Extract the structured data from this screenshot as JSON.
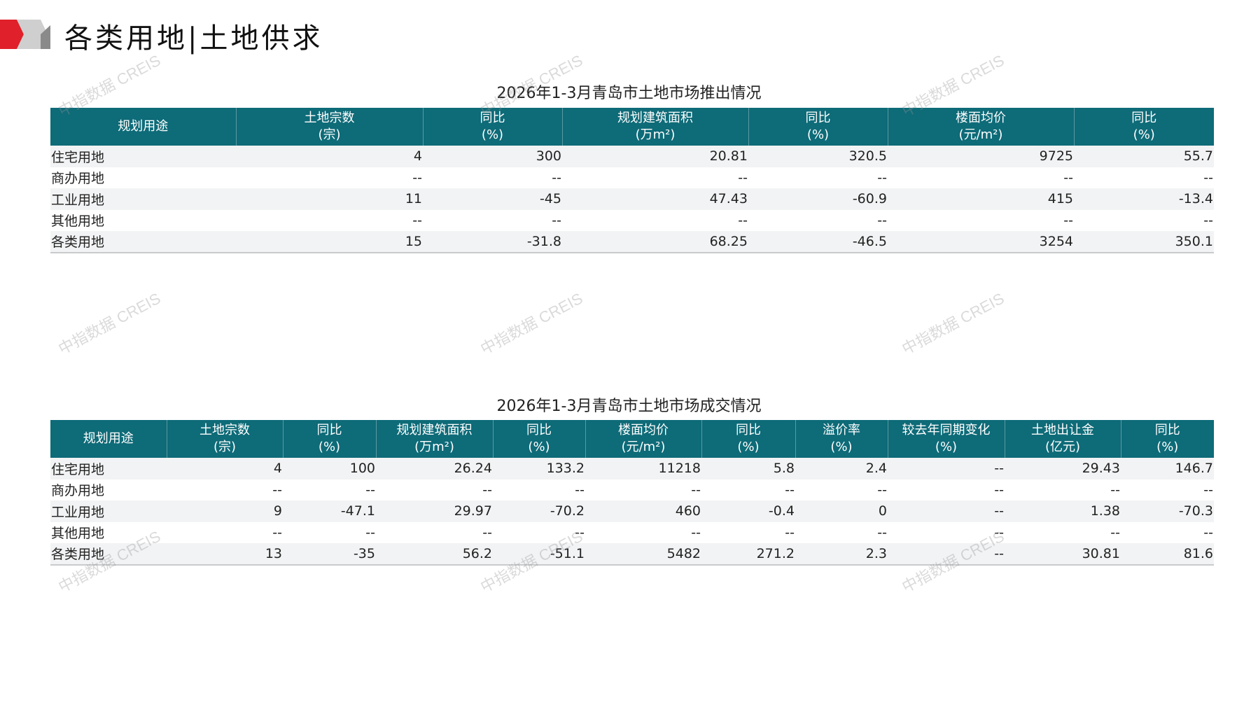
{
  "page_title": "各类用地|土地供求",
  "watermark": "中指数据 CREIS",
  "colors": {
    "header_bg": "#0e6b78",
    "accent_red": "#e0202a"
  },
  "supply": {
    "title": "2026年1-3月青岛市土地市场推出情况",
    "headers": [
      [
        "规划用途",
        ""
      ],
      [
        "土地宗数",
        "(宗)"
      ],
      [
        "同比",
        "(%)"
      ],
      [
        "规划建筑面积",
        "(万m²)"
      ],
      [
        "同比",
        "(%)"
      ],
      [
        "楼面均价",
        "(元/m²)"
      ],
      [
        "同比",
        "(%)"
      ]
    ],
    "rows": [
      [
        "住宅用地",
        "4",
        "300",
        "20.81",
        "320.5",
        "9725",
        "55.7"
      ],
      [
        "商办用地",
        "--",
        "--",
        "--",
        "--",
        "--",
        "--"
      ],
      [
        "工业用地",
        "11",
        "-45",
        "47.43",
        "-60.9",
        "415",
        "-13.4"
      ],
      [
        "其他用地",
        "--",
        "--",
        "--",
        "--",
        "--",
        "--"
      ],
      [
        "各类用地",
        "15",
        "-31.8",
        "68.25",
        "-46.5",
        "3254",
        "350.1"
      ]
    ]
  },
  "deals": {
    "title": "2026年1-3月青岛市土地市场成交情况",
    "headers": [
      [
        "规划用途",
        ""
      ],
      [
        "土地宗数",
        "(宗)"
      ],
      [
        "同比",
        "(%)"
      ],
      [
        "规划建筑面积",
        "(万m²)"
      ],
      [
        "同比",
        "(%)"
      ],
      [
        "楼面均价",
        "(元/m²)"
      ],
      [
        "同比",
        "(%)"
      ],
      [
        "溢价率",
        "(%)"
      ],
      [
        "较去年同期变化",
        "(%)"
      ],
      [
        "土地出让金",
        "(亿元)"
      ],
      [
        "同比",
        "(%)"
      ]
    ],
    "rows": [
      [
        "住宅用地",
        "4",
        "100",
        "26.24",
        "133.2",
        "11218",
        "5.8",
        "2.4",
        "--",
        "29.43",
        "146.7"
      ],
      [
        "商办用地",
        "--",
        "--",
        "--",
        "--",
        "--",
        "--",
        "--",
        "--",
        "--",
        "--"
      ],
      [
        "工业用地",
        "9",
        "-47.1",
        "29.97",
        "-70.2",
        "460",
        "-0.4",
        "0",
        "--",
        "1.38",
        "-70.3"
      ],
      [
        "其他用地",
        "--",
        "--",
        "--",
        "--",
        "--",
        "--",
        "--",
        "--",
        "--",
        "--"
      ],
      [
        "各类用地",
        "13",
        "-35",
        "56.2",
        "-51.1",
        "5482",
        "271.2",
        "2.3",
        "--",
        "30.81",
        "81.6"
      ]
    ]
  }
}
